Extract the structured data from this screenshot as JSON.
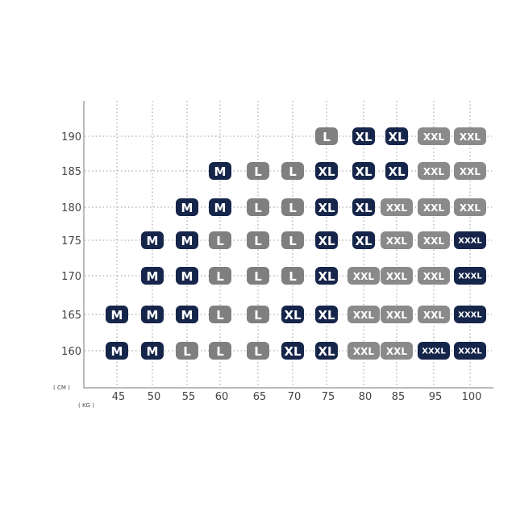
{
  "chart_data": {
    "type": "heatmap",
    "title": "",
    "xlabel": "",
    "ylabel": "",
    "x_unit": "( KG )",
    "y_unit": "( CM )",
    "x": [
      "45",
      "50",
      "55",
      "60",
      "65",
      "70",
      "75",
      "80",
      "85",
      "95",
      "100"
    ],
    "y": [
      "190",
      "185",
      "180",
      "175",
      "170",
      "165",
      "160"
    ],
    "grid": true,
    "cells": [
      [
        "",
        "",
        "",
        "",
        "",
        "",
        "L",
        "XL",
        "XL",
        "XXL",
        "XXL"
      ],
      [
        "",
        "",
        "",
        "M",
        "L",
        "L",
        "XL",
        "XL",
        "XL",
        "XXL",
        "XXL"
      ],
      [
        "",
        "",
        "M",
        "M",
        "L",
        "L",
        "XL",
        "XL",
        "XXL",
        "XXL",
        "XXL"
      ],
      [
        "",
        "M",
        "M",
        "L",
        "L",
        "L",
        "XL",
        "XL",
        "XXL",
        "XXL",
        "XXXL"
      ],
      [
        "",
        "M",
        "M",
        "L",
        "L",
        "L",
        "XL",
        "XXL",
        "XXL",
        "XXL",
        "XXXL"
      ],
      [
        "M",
        "M",
        "M",
        "L",
        "L",
        "XL",
        "XL",
        "XXL",
        "XXL",
        "XXL",
        "XXXL"
      ],
      [
        "M",
        "M",
        "L",
        "L",
        "L",
        "XL",
        "XL",
        "XXL",
        "XXL",
        "XXXL",
        "XXXL"
      ]
    ],
    "size_colors": {
      "M": "#16254a",
      "L": "#7f7f7f",
      "XL": "#16254a",
      "XXL": "#8a8a8a",
      "XXXL": "#16254a"
    }
  }
}
